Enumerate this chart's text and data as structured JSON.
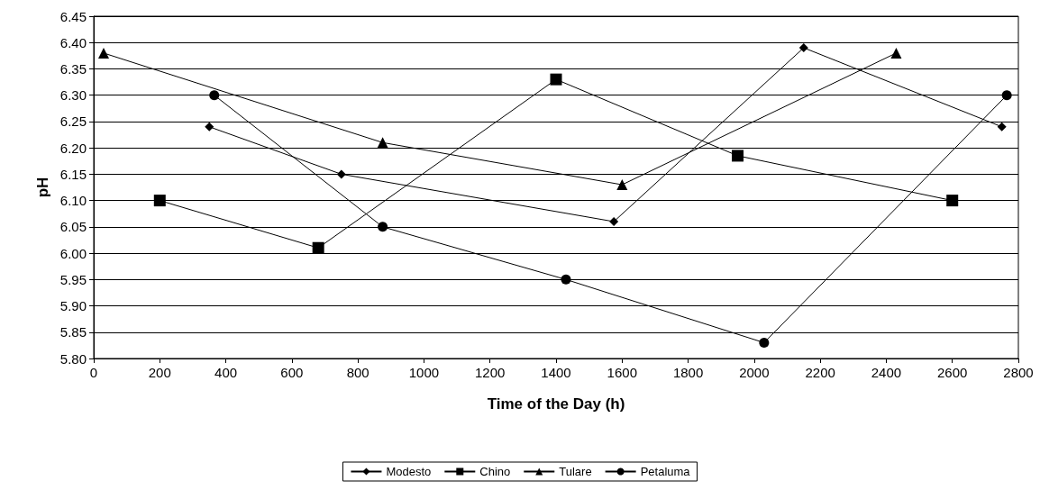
{
  "chart_data": {
    "type": "line",
    "xlabel": "Time of the Day (h)",
    "ylabel": "pH",
    "xlim": [
      0,
      2800
    ],
    "xticks": [
      0,
      200,
      400,
      600,
      800,
      1000,
      1200,
      1400,
      1600,
      1800,
      2000,
      2200,
      2400,
      2600,
      2800
    ],
    "ylim": [
      5.8,
      6.45
    ],
    "yticks": [
      {
        "value": 5.8,
        "label": "5.80"
      },
      {
        "value": 5.85,
        "label": "5.85"
      },
      {
        "value": 5.9,
        "label": "5.90"
      },
      {
        "value": 5.95,
        "label": "5.95"
      },
      {
        "value": 6.0,
        "label": "6.00"
      },
      {
        "value": 6.05,
        "label": "6.05"
      },
      {
        "value": 6.1,
        "label": "6.10"
      },
      {
        "value": 6.15,
        "label": "6.15"
      },
      {
        "value": 6.2,
        "label": "6.20"
      },
      {
        "value": 6.25,
        "label": "6.25"
      },
      {
        "value": 6.3,
        "label": "6.30"
      },
      {
        "value": 6.35,
        "label": "6.35"
      },
      {
        "value": 6.4,
        "label": "6.40"
      },
      {
        "value": 6.45,
        "label": "6.45"
      }
    ],
    "grid": "y",
    "legend": "bottom",
    "line_style": "solid",
    "series": [
      {
        "name": "Modesto",
        "color": "#000000",
        "marker": "diamond",
        "x": [
          350,
          750,
          1575,
          2150,
          2750
        ],
        "values": [
          6.24,
          6.15,
          6.06,
          6.39,
          6.24
        ]
      },
      {
        "name": "Chino",
        "color": "#000000",
        "marker": "square",
        "x": [
          200,
          680,
          1400,
          1950,
          2600
        ],
        "values": [
          6.1,
          6.01,
          6.33,
          6.185,
          6.1
        ]
      },
      {
        "name": "Tulare",
        "color": "#000000",
        "marker": "triangle",
        "x": [
          30,
          875,
          1600,
          2430
        ],
        "values": [
          6.38,
          6.21,
          6.13,
          6.38
        ]
      },
      {
        "name": "Petaluma",
        "color": "#000000",
        "marker": "circle",
        "x": [
          365,
          875,
          1430,
          2030,
          2765
        ],
        "values": [
          6.3,
          6.05,
          5.95,
          5.83,
          6.3
        ]
      }
    ]
  }
}
